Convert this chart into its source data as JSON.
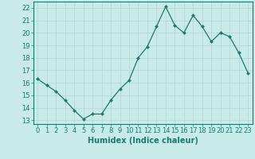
{
  "x": [
    0,
    1,
    2,
    3,
    4,
    5,
    6,
    7,
    8,
    9,
    10,
    11,
    12,
    13,
    14,
    15,
    16,
    17,
    18,
    19,
    20,
    21,
    22,
    23
  ],
  "y": [
    16.3,
    15.8,
    15.3,
    14.6,
    13.8,
    13.1,
    13.5,
    13.5,
    14.6,
    15.5,
    16.2,
    18.0,
    18.9,
    20.5,
    22.1,
    20.6,
    20.0,
    21.4,
    20.5,
    19.3,
    20.0,
    19.7,
    18.4,
    16.8
  ],
  "line_color": "#1a7a6e",
  "marker": "D",
  "marker_size": 2.0,
  "bg_color": "#c8eae8",
  "grid_color": "#b8d8d4",
  "xlabel": "Humidex (Indice chaleur)",
  "ylabel_ticks": [
    13,
    14,
    15,
    16,
    17,
    18,
    19,
    20,
    21,
    22
  ],
  "ylim": [
    12.7,
    22.5
  ],
  "xlim": [
    -0.5,
    23.5
  ],
  "xticks": [
    0,
    1,
    2,
    3,
    4,
    5,
    6,
    7,
    8,
    9,
    10,
    11,
    12,
    13,
    14,
    15,
    16,
    17,
    18,
    19,
    20,
    21,
    22,
    23
  ],
  "tick_color": "#1a7a6e",
  "label_fontsize": 7,
  "tick_fontsize": 6
}
